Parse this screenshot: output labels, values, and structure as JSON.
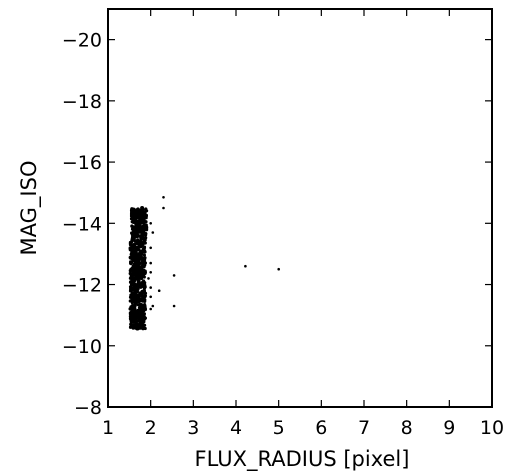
{
  "chart_data": {
    "type": "scatter",
    "title": "",
    "xlabel": "FLUX_RADIUS [pixel]",
    "ylabel": "MAG_ISO",
    "xlim": [
      1,
      10
    ],
    "ylim": [
      -8,
      -21
    ],
    "y_inverted": true,
    "grid": false,
    "legend": "none",
    "x_ticks": [
      1,
      2,
      3,
      4,
      5,
      6,
      7,
      8,
      9,
      10
    ],
    "x_tick_labels": [
      "1",
      "2",
      "3",
      "4",
      "5",
      "6",
      "7",
      "8",
      "9",
      "10"
    ],
    "y_ticks": [
      -20,
      -18,
      -16,
      -14,
      -12,
      -10,
      -8
    ],
    "y_tick_labels": [
      "−20",
      "−18",
      "−16",
      "−14",
      "−12",
      "−10",
      "−8"
    ],
    "colors": {
      "points": "#000000",
      "frame": "#000000"
    },
    "main_cluster": {
      "description_x_range": [
        1.5,
        1.9
      ],
      "description_y_range": [
        -10.5,
        -14.5
      ],
      "points": [
        [
          1.58,
          -11.0
        ],
        [
          1.62,
          -11.2
        ],
        [
          1.65,
          -11.4
        ],
        [
          1.6,
          -10.9
        ],
        [
          1.68,
          -10.7
        ],
        [
          1.72,
          -10.6
        ],
        [
          1.75,
          -10.8
        ],
        [
          1.7,
          -11.1
        ],
        [
          1.64,
          -11.6
        ],
        [
          1.66,
          -11.8
        ],
        [
          1.7,
          -12.0
        ],
        [
          1.68,
          -12.2
        ],
        [
          1.72,
          -12.4
        ],
        [
          1.66,
          -12.6
        ],
        [
          1.7,
          -12.8
        ],
        [
          1.74,
          -13.0
        ],
        [
          1.68,
          -13.2
        ],
        [
          1.72,
          -13.4
        ],
        [
          1.7,
          -13.6
        ],
        [
          1.74,
          -13.8
        ],
        [
          1.72,
          -14.0
        ],
        [
          1.76,
          -14.2
        ],
        [
          1.78,
          -14.4
        ],
        [
          1.8,
          -14.5
        ],
        [
          1.74,
          -14.3
        ],
        [
          1.62,
          -12.0
        ],
        [
          1.6,
          -11.5
        ],
        [
          1.78,
          -11.3
        ],
        [
          1.8,
          -11.0
        ],
        [
          1.82,
          -10.9
        ],
        [
          1.84,
          -11.2
        ],
        [
          1.78,
          -12.0
        ],
        [
          1.8,
          -12.6
        ],
        [
          1.82,
          -13.1
        ],
        [
          1.78,
          -13.5
        ],
        [
          1.84,
          -14.1
        ],
        [
          1.86,
          -13.8
        ],
        [
          1.64,
          -12.9
        ],
        [
          1.62,
          -13.3
        ],
        [
          1.66,
          -13.9
        ],
        [
          1.56,
          -11.1
        ],
        [
          1.58,
          -11.3
        ],
        [
          1.6,
          -11.7
        ],
        [
          1.76,
          -10.7
        ],
        [
          1.68,
          -11.9
        ],
        [
          1.72,
          -12.1
        ],
        [
          1.74,
          -12.7
        ],
        [
          1.76,
          -13.3
        ],
        [
          1.7,
          -13.9
        ],
        [
          1.8,
          -14.3
        ]
      ]
    },
    "outliers": [
      [
        2.3,
        -14.85
      ],
      [
        2.3,
        -14.5
      ],
      [
        2.0,
        -14.0
      ],
      [
        2.05,
        -13.7
      ],
      [
        2.0,
        -13.2
      ],
      [
        2.0,
        -12.7
      ],
      [
        2.0,
        -12.4
      ],
      [
        1.95,
        -12.2
      ],
      [
        2.0,
        -11.9
      ],
      [
        2.0,
        -11.6
      ],
      [
        2.05,
        -11.3
      ],
      [
        2.2,
        -11.8
      ],
      [
        2.0,
        -11.2
      ],
      [
        2.55,
        -12.3
      ],
      [
        2.55,
        -11.3
      ],
      [
        4.22,
        -12.6
      ],
      [
        5.0,
        -12.5
      ]
    ]
  }
}
